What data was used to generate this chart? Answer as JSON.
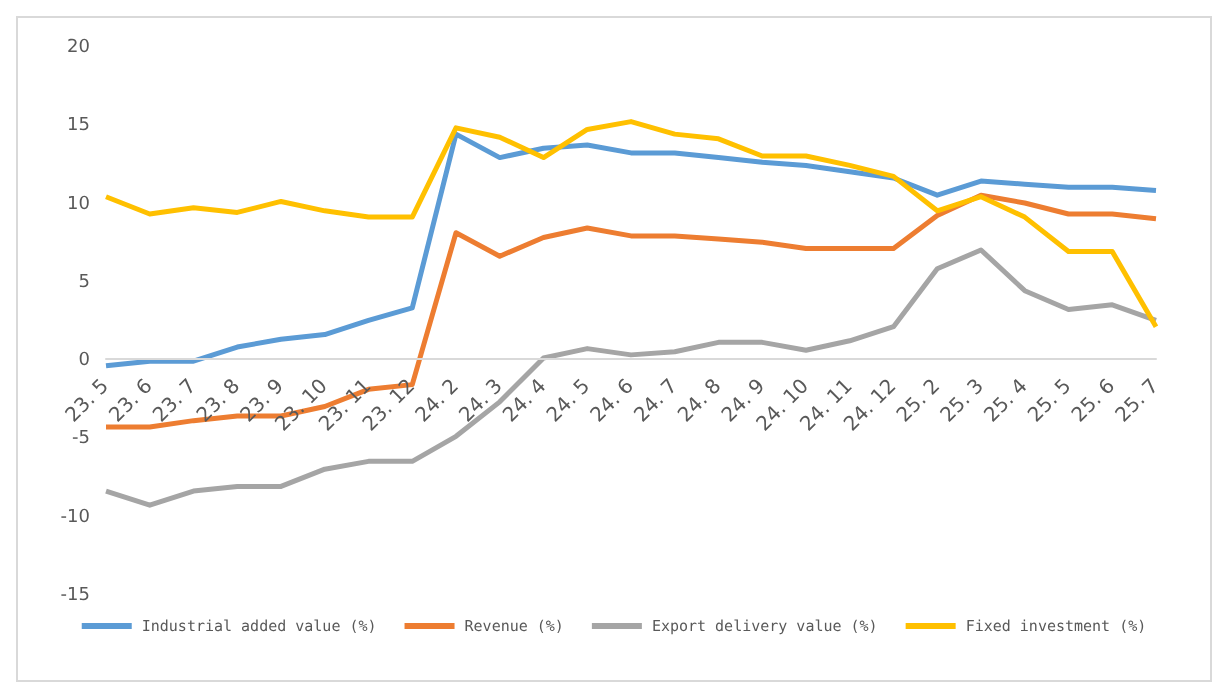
{
  "chart_data": {
    "type": "line",
    "categories": [
      "23. 5",
      "23. 6",
      "23. 7",
      "23. 8",
      "23. 9",
      "23. 10",
      "23. 11",
      "23. 12",
      "24. 2",
      "24. 3",
      "24. 4",
      "24. 5",
      "24. 6",
      "24. 7",
      "24. 8",
      "24. 9",
      "24. 10",
      "24. 11",
      "24. 12",
      "25. 2",
      "25. 3",
      "25. 4",
      "25. 5",
      "25. 6",
      "25. 7"
    ],
    "series": [
      {
        "name": "Industrial added value (%)",
        "color": "#5b9bd5",
        "values": [
          -0.3,
          0,
          0,
          0.9,
          1.4,
          1.7,
          2.6,
          3.4,
          14.5,
          13,
          13.6,
          13.8,
          13.3,
          13.3,
          13,
          12.7,
          12.5,
          12.1,
          11.7,
          10.6,
          11.5,
          11.3,
          11.1,
          11.1,
          10.9
        ]
      },
      {
        "name": "Revenue (%)",
        "color": "#ed7d31",
        "values": [
          -4.2,
          -4.2,
          -3.8,
          -3.5,
          -3.5,
          -2.9,
          -1.8,
          -1.5,
          8.2,
          6.7,
          7.9,
          8.5,
          8,
          8,
          7.8,
          7.6,
          7.2,
          7.2,
          7.2,
          9.3,
          10.6,
          10.1,
          9.4,
          9.4,
          9.1
        ]
      },
      {
        "name": "Export delivery value (%)",
        "color": "#a5a5a5",
        "values": [
          -8.3,
          -9.2,
          -8.3,
          -8,
          -8,
          -6.9,
          -6.4,
          -6.4,
          -4.8,
          -2.6,
          0.2,
          0.8,
          0.4,
          0.6,
          1.2,
          1.2,
          0.7,
          1.3,
          2.2,
          5.9,
          7.1,
          4.5,
          3.3,
          3.6,
          2.6
        ]
      },
      {
        "name": "Fixed investment (%)",
        "color": "#ffc000",
        "values": [
          10.5,
          9.4,
          9.8,
          9.5,
          10.2,
          9.6,
          9.2,
          9.2,
          14.9,
          14.3,
          13,
          14.8,
          15.3,
          14.5,
          14.2,
          13.1,
          13.1,
          12.5,
          11.8,
          9.6,
          10.5,
          9.2,
          7,
          7,
          2.2
        ]
      }
    ],
    "ylim": [
      -15,
      20
    ],
    "yticks": [
      -15,
      -10,
      -5,
      0,
      5,
      10,
      15,
      20
    ],
    "grid": false,
    "legend": "bottom",
    "marker": "none",
    "line_style": "solid"
  }
}
